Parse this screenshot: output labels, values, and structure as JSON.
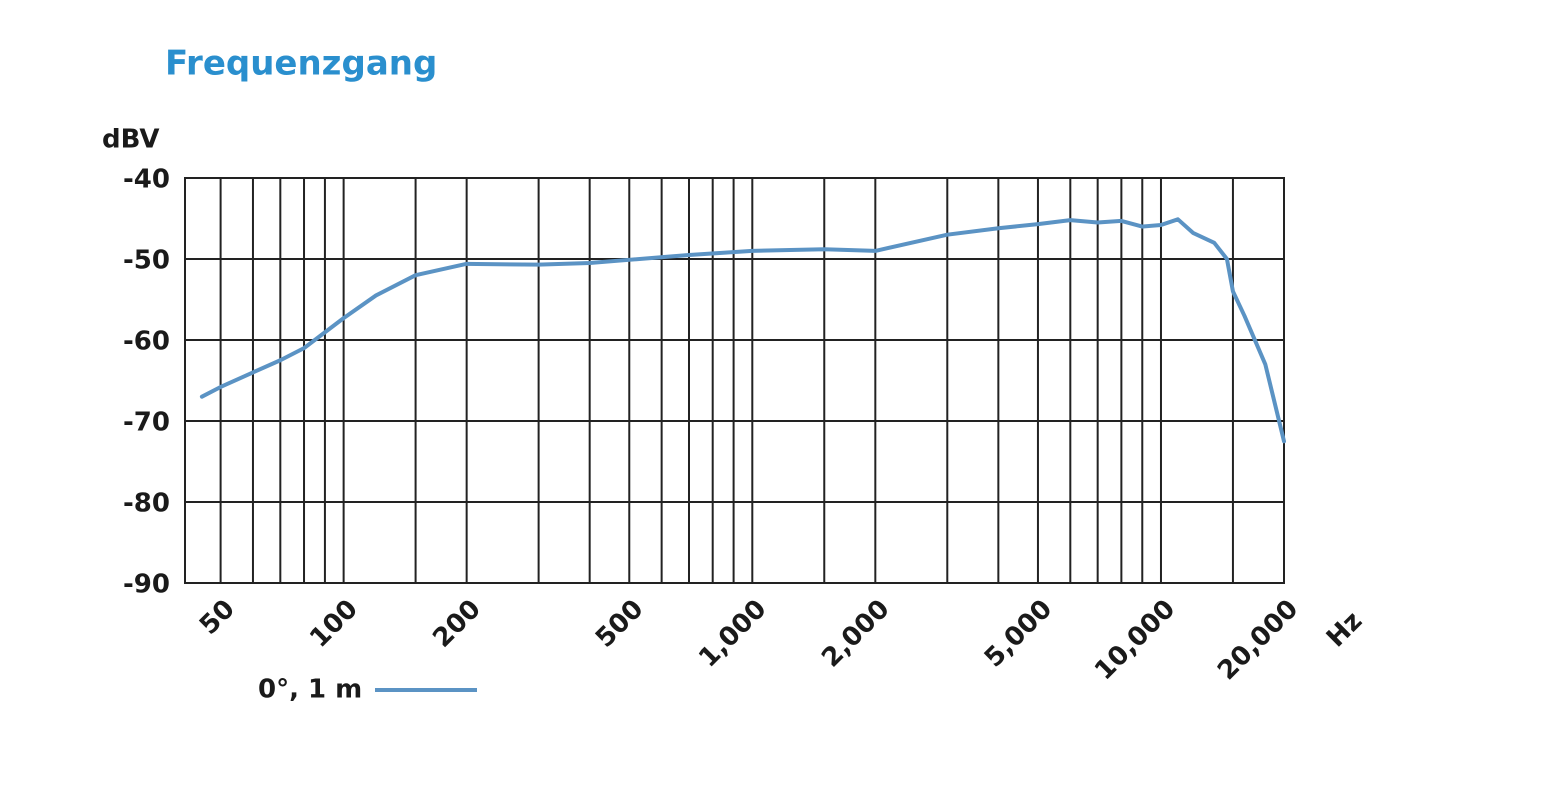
{
  "chart_data": {
    "type": "line",
    "title": "Frequenzgang",
    "y_label": "dBV",
    "x_label": "Hz",
    "log_x": true,
    "grid": true,
    "xlim": [
      40,
      20000
    ],
    "ylim": [
      -90,
      -40
    ],
    "yticks": [
      -40,
      -50,
      -60,
      -70,
      -80,
      -90
    ],
    "xticks": [
      50,
      100,
      200,
      500,
      {
        "value": 1000,
        "label": "1,000"
      },
      {
        "value": 2000,
        "label": "2,000"
      },
      {
        "value": 5000,
        "label": "5,000"
      },
      {
        "value": 10000,
        "label": "10,000"
      },
      {
        "value": 20000,
        "label": "20,000"
      }
    ],
    "x_minor_ticks": [
      60,
      70,
      80,
      90,
      150,
      300,
      400,
      600,
      700,
      800,
      900,
      1500,
      3000,
      4000,
      6000,
      7000,
      8000,
      9000,
      15000
    ],
    "x": [
      45,
      50,
      60,
      70,
      80,
      100,
      120,
      150,
      200,
      300,
      400,
      500,
      700,
      1000,
      1500,
      2000,
      3000,
      4000,
      5000,
      6000,
      7000,
      8000,
      9000,
      10000,
      11000,
      12000,
      13500,
      14500,
      15000,
      16000,
      18000,
      20000
    ],
    "series": [
      {
        "name": "0°, 1 m",
        "color": "#5b93c4",
        "values": [
          -67,
          -65.8,
          -64,
          -62.5,
          -61,
          -57.3,
          -54.5,
          -52,
          -50.6,
          -50.7,
          -50.5,
          -50.1,
          -49.5,
          -49,
          -48.8,
          -49,
          -47,
          -46.2,
          -45.7,
          -45.2,
          -45.5,
          -45.3,
          -46,
          -45.8,
          -45.1,
          -46.8,
          -48,
          -50,
          -54,
          -57,
          -63,
          -72.5
        ]
      }
    ]
  }
}
